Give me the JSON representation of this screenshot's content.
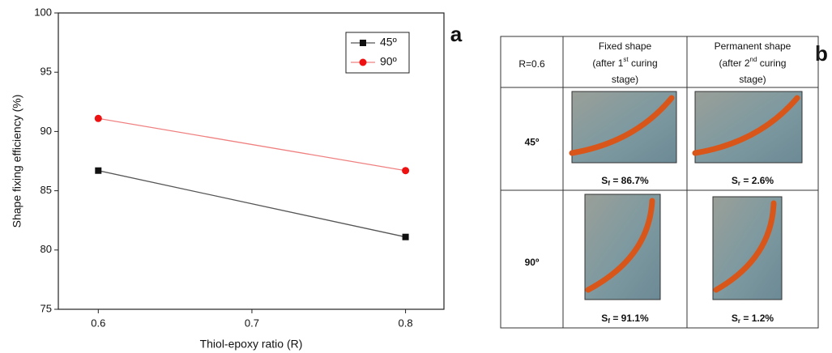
{
  "chart_data": {
    "type": "line",
    "x_label": "Thiol-epoxy ratio (R)",
    "y_label": "Shape fixing efficiency (%)",
    "x": [
      0.6,
      0.8
    ],
    "series": [
      {
        "name": "45º",
        "color": "#555555",
        "marker": "square",
        "marker_color": "#111111",
        "values": [
          86.7,
          81.1
        ]
      },
      {
        "name": "90º",
        "color": "#f08080",
        "marker": "circle",
        "marker_color": "#ee1111",
        "values": [
          91.1,
          86.7
        ]
      }
    ],
    "xlim": [
      0.574,
      0.825
    ],
    "ylim": [
      75,
      100
    ],
    "xticks": [
      0.6,
      0.7,
      0.8
    ],
    "yticks": [
      75,
      80,
      85,
      90,
      95,
      100
    ]
  },
  "panels": [
    "a",
    "b"
  ],
  "table": {
    "corner": "R=0.6",
    "columns": [
      {
        "title": "Fixed shape",
        "pre": "(after 1",
        "sup": "st",
        "post": " curing",
        "last": "stage)"
      },
      {
        "title": "Permanent shape",
        "pre": "(after 2",
        "sup": "nd",
        "post": " curing",
        "last": "stage)"
      }
    ],
    "rows": [
      {
        "label": "45º",
        "cells": [
          {
            "s": "S",
            "sub": "f",
            "rest": " = 86.7%"
          },
          {
            "s": "S",
            "sub": "r",
            "rest": " = 2.6%"
          }
        ]
      },
      {
        "label": "90º",
        "cells": [
          {
            "s": "S",
            "sub": "f",
            "rest": " = 91.1%"
          },
          {
            "s": "S",
            "sub": "r",
            "rest": " = 1.2%"
          }
        ]
      }
    ]
  }
}
